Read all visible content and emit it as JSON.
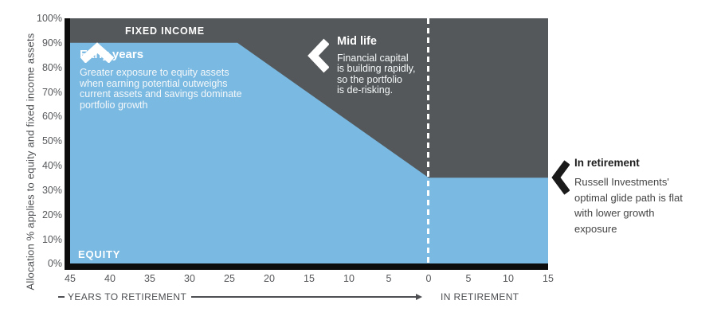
{
  "colors": {
    "equity_blue": "#79B9E2",
    "fixed_income_gray": "#54585A",
    "axis_black": "#0C0C0C",
    "axis_text_gray": "#4D4F52",
    "white": "#FFFFFF"
  },
  "chart_data": {
    "type": "area",
    "y_axis_title": "Allocation % applies to equity and fixed income assets",
    "y_ticks": [
      "100%",
      "90%",
      "80%",
      "70%",
      "60%",
      "50%",
      "40%",
      "30%",
      "20%",
      "10%",
      "0%"
    ],
    "x_ticks": [
      "45",
      "40",
      "35",
      "30",
      "25",
      "20",
      "15",
      "10",
      "5",
      "0",
      "5",
      "10",
      "15"
    ],
    "x_axis_left_label": "YEARS TO RETIREMENT",
    "x_axis_right_label": "IN RETIREMENT",
    "x_range_years": [
      -45,
      15
    ],
    "y_range_pct": [
      0,
      100
    ],
    "retirement_marker_year": 0,
    "grid": false,
    "series": [
      {
        "name": "EQUITY",
        "color": "#79B9E2",
        "breakpoints": [
          {
            "year": -45,
            "pct": 90
          },
          {
            "year": -24,
            "pct": 90
          },
          {
            "year": 0,
            "pct": 35
          },
          {
            "year": 15,
            "pct": 35
          }
        ]
      },
      {
        "name": "FIXED INCOME",
        "color": "#54585A",
        "note": "area above the equity glide path up to 100%"
      }
    ]
  },
  "area_labels": {
    "fixed_income": "FIXED INCOME",
    "equity": "EQUITY"
  },
  "annotations": {
    "early_years": {
      "icon": "chevron-up-icon",
      "title": "Early years",
      "body_lines": [
        "Greater exposure to equity assets",
        "when earning potential outweighs",
        "current assets and savings dominate",
        "portfolio growth"
      ]
    },
    "mid_life": {
      "icon": "chevron-left-icon",
      "title": "Mid life",
      "body_lines": [
        "Financial capital",
        "is building rapidly,",
        "so the portfolio",
        "is de-risking."
      ]
    },
    "in_retirement": {
      "icon": "chevron-left-icon",
      "title": "In retirement",
      "body_lines": [
        "Russell Investments'",
        "optimal glide path is flat",
        "with lower growth",
        "exposure"
      ]
    }
  }
}
